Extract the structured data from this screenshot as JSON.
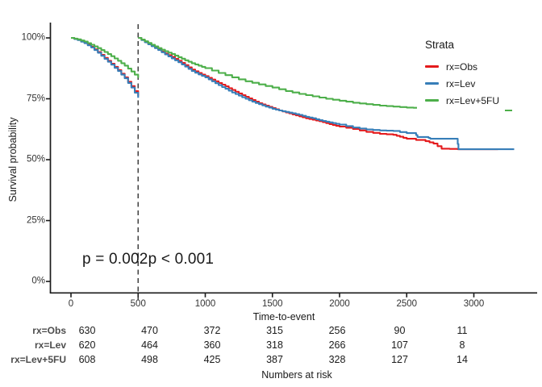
{
  "figure": {
    "background": "#ffffff",
    "footer": "Numbers at risk",
    "legend": {
      "title": "Strata"
    },
    "axis_color": "#1a1a1a",
    "landmark_line_color": "#3f3f3f"
  },
  "chart_data": {
    "type": "line",
    "subtype": "kaplan-meier-survival",
    "title": "",
    "xlabel": "Time-to-event",
    "ylabel": "Survival probability",
    "xlim": [
      0,
      3400
    ],
    "ylim_percent": [
      0,
      100
    ],
    "grid": "off",
    "legend_position": "inside-top-right",
    "landmark_time": 500,
    "xticks": [
      {
        "value": 0,
        "label": "0"
      },
      {
        "value": 500,
        "label": "500"
      },
      {
        "value": 1000,
        "label": "1000"
      },
      {
        "value": 1500,
        "label": "1500"
      },
      {
        "value": 2000,
        "label": "2000"
      },
      {
        "value": 2500,
        "label": "2500"
      },
      {
        "value": 3000,
        "label": "3000"
      }
    ],
    "yticks": [
      {
        "value": 0,
        "label": "0%"
      },
      {
        "value": 25,
        "label": "25%"
      },
      {
        "value": 50,
        "label": "50%"
      },
      {
        "value": 75,
        "label": "75%"
      },
      {
        "value": 100,
        "label": "100%"
      }
    ],
    "annotations": [
      {
        "text": "p = 0.002",
        "anchor_time": 80,
        "y_percent": 9
      },
      {
        "text": "p < 0.001",
        "anchor_time": 600,
        "y_percent": 9
      }
    ],
    "series": [
      {
        "name": "rx=Obs",
        "color": "#E41A1C",
        "segments": [
          [
            [
              0,
              100
            ],
            [
              50,
              99.2
            ],
            [
              100,
              98
            ],
            [
              150,
              96.4
            ],
            [
              200,
              94.2
            ],
            [
              250,
              91.8
            ],
            [
              300,
              89.4
            ],
            [
              350,
              86.8
            ],
            [
              400,
              83.8
            ],
            [
              450,
              80.2
            ],
            [
              500,
              76.2
            ]
          ],
          [
            [
              500,
              100
            ],
            [
              550,
              98.4
            ],
            [
              600,
              96.8
            ],
            [
              650,
              95.2
            ],
            [
              700,
              93.6
            ],
            [
              750,
              92.2
            ],
            [
              800,
              90.6
            ],
            [
              850,
              88.8
            ],
            [
              900,
              87
            ],
            [
              950,
              85.6
            ],
            [
              1000,
              84.3
            ],
            [
              1050,
              82.9
            ],
            [
              1100,
              81.5
            ],
            [
              1150,
              80.1
            ],
            [
              1200,
              78.6
            ],
            [
              1250,
              77.2
            ],
            [
              1300,
              75.8
            ],
            [
              1350,
              74.5
            ],
            [
              1400,
              73.2
            ],
            [
              1450,
              72.2
            ],
            [
              1500,
              71.2
            ],
            [
              1550,
              70.2
            ],
            [
              1600,
              69.4
            ],
            [
              1650,
              68.6
            ],
            [
              1700,
              67.8
            ],
            [
              1750,
              67
            ],
            [
              1800,
              66.4
            ],
            [
              1850,
              65.8
            ],
            [
              1900,
              65
            ],
            [
              1950,
              64.2
            ],
            [
              2000,
              63.6
            ],
            [
              2100,
              62.6
            ],
            [
              2200,
              61.4
            ],
            [
              2300,
              60.6
            ],
            [
              2400,
              60.2
            ],
            [
              2450,
              59.4
            ],
            [
              2500,
              58.6
            ],
            [
              2640,
              57.6
            ],
            [
              2700,
              56.6
            ],
            [
              2760,
              54.5
            ],
            [
              2880,
              54.3
            ],
            [
              3180,
              54.3
            ]
          ]
        ]
      },
      {
        "name": "rx=Lev",
        "color": "#377EB8",
        "segments": [
          [
            [
              0,
              100
            ],
            [
              50,
              99.1
            ],
            [
              100,
              97.8
            ],
            [
              150,
              96.1
            ],
            [
              200,
              93.9
            ],
            [
              250,
              91.4
            ],
            [
              300,
              89
            ],
            [
              350,
              86.4
            ],
            [
              400,
              83.4
            ],
            [
              450,
              79.6
            ],
            [
              500,
              75.4
            ]
          ],
          [
            [
              500,
              100
            ],
            [
              550,
              98.2
            ],
            [
              600,
              96.6
            ],
            [
              650,
              95
            ],
            [
              700,
              93.2
            ],
            [
              750,
              91.6
            ],
            [
              800,
              90
            ],
            [
              850,
              88.2
            ],
            [
              900,
              86.4
            ],
            [
              950,
              85
            ],
            [
              1000,
              83.8
            ],
            [
              1050,
              82.2
            ],
            [
              1100,
              80.6
            ],
            [
              1150,
              79.1
            ],
            [
              1200,
              77.6
            ],
            [
              1250,
              76.3
            ],
            [
              1300,
              75
            ],
            [
              1350,
              73.8
            ],
            [
              1400,
              72.8
            ],
            [
              1450,
              71.8
            ],
            [
              1500,
              70.9
            ],
            [
              1550,
              70.2
            ],
            [
              1600,
              69.6
            ],
            [
              1650,
              69
            ],
            [
              1700,
              68.4
            ],
            [
              1750,
              67.6
            ],
            [
              1800,
              67
            ],
            [
              1850,
              66.2
            ],
            [
              1900,
              65.6
            ],
            [
              1950,
              65
            ],
            [
              2000,
              64.4
            ],
            [
              2100,
              63.2
            ],
            [
              2200,
              62.4
            ],
            [
              2300,
              62
            ],
            [
              2400,
              61.8
            ],
            [
              2500,
              60.9
            ],
            [
              2560,
              60.9
            ],
            [
              2580,
              59.3
            ],
            [
              2650,
              59.3
            ],
            [
              2675,
              58.6
            ],
            [
              2875,
              58.6
            ],
            [
              2885,
              54.3
            ],
            [
              3300,
              54.3
            ]
          ]
        ]
      },
      {
        "name": "rx=Lev+5FU",
        "color": "#4DAF4A",
        "segments": [
          [
            [
              0,
              100
            ],
            [
              50,
              99.4
            ],
            [
              100,
              98.5
            ],
            [
              150,
              97.2
            ],
            [
              200,
              95.8
            ],
            [
              250,
              94.2
            ],
            [
              300,
              92.5
            ],
            [
              350,
              90.6
            ],
            [
              400,
              88.6
            ],
            [
              450,
              86.2
            ],
            [
              500,
              83.6
            ]
          ],
          [
            [
              500,
              100
            ],
            [
              550,
              98.6
            ],
            [
              600,
              97.2
            ],
            [
              650,
              95.8
            ],
            [
              700,
              94.5
            ],
            [
              750,
              93.4
            ],
            [
              800,
              92.1
            ],
            [
              850,
              90.8
            ],
            [
              900,
              89.6
            ],
            [
              950,
              88.6
            ],
            [
              1000,
              87.6
            ],
            [
              1100,
              85.6
            ],
            [
              1200,
              83.8
            ],
            [
              1300,
              82.2
            ],
            [
              1400,
              80.9
            ],
            [
              1500,
              79.6
            ],
            [
              1600,
              78.2
            ],
            [
              1700,
              77
            ],
            [
              1800,
              76
            ],
            [
              1900,
              75
            ],
            [
              2000,
              74.2
            ],
            [
              2100,
              73.4
            ],
            [
              2200,
              72.8
            ],
            [
              2300,
              72.2
            ],
            [
              2400,
              71.8
            ],
            [
              2500,
              71.4
            ],
            [
              2600,
              71.2
            ],
            [
              2700,
              71
            ],
            [
              2800,
              70.7
            ],
            [
              2900,
              70.5
            ],
            [
              3000,
              70.3
            ],
            [
              3100,
              70.2
            ],
            [
              3285,
              70.2
            ]
          ]
        ]
      }
    ]
  },
  "risk_table": {
    "times": [
      0,
      500,
      1000,
      1500,
      2000,
      2500,
      3000
    ],
    "rows": [
      {
        "label": "rx=Obs",
        "values": [
          630,
          470,
          372,
          315,
          256,
          90,
          11
        ]
      },
      {
        "label": "rx=Lev",
        "values": [
          620,
          464,
          360,
          318,
          266,
          107,
          8
        ]
      },
      {
        "label": "rx=Lev+5FU",
        "values": [
          608,
          498,
          425,
          387,
          328,
          127,
          14
        ]
      }
    ]
  }
}
